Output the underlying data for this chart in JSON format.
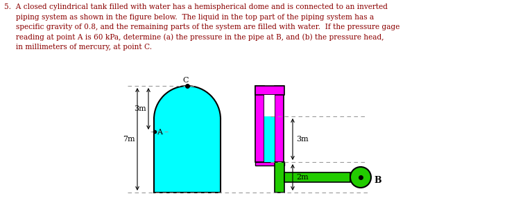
{
  "text_lines": [
    "5.  A closed cylindrical tank filled with water has a hemispherical dome and is connected to an inverted",
    "     piping system as shown in the figure below.  The liquid in the top part of the piping system has a",
    "     specific gravity of 0.8, and the remaining parts of the system are filled with water.  If the pressure gage",
    "     reading at point A is 60 kPa, determine (a) the pressure in the pipe at B, and (b) the pressure head,",
    "     in millimeters of mercury, at point C."
  ],
  "text_color": "#8B0000",
  "bg_color": "#ffffff",
  "fig_width": 7.57,
  "fig_height": 2.96,
  "dpi": 100,
  "cyan_color": "#00FFFF",
  "magenta_color": "#FF00FF",
  "green_color": "#22CC00",
  "black": "#000000",
  "gray_dash": "#999999",
  "label_3m_top": "3m",
  "label_7m": "7m",
  "label_3m_right": "3m",
  "label_2m": "2m",
  "label_A": "A",
  "label_B": "B",
  "label_C": "C"
}
